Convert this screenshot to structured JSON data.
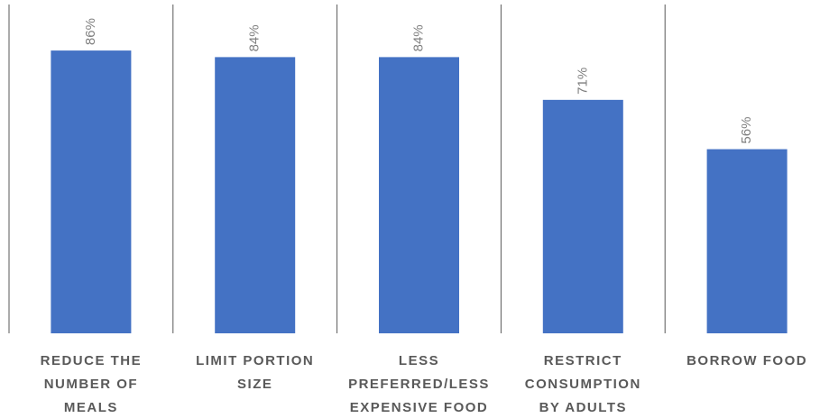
{
  "chart_data": {
    "type": "bar",
    "categories": [
      "REDUCE THE\nNUMBER OF\nMEALS",
      "LIMIT PORTION\nSIZE",
      "LESS\nPREFERRED/LESS\nEXPENSIVE FOOD",
      "RESTRICT\nCONSUMPTION\nBY ADULTS",
      "BORROW FOOD"
    ],
    "values": [
      86,
      84,
      84,
      71,
      56
    ],
    "value_labels": [
      "86%",
      "84%",
      "84%",
      "71%",
      "56%"
    ],
    "color": "#4472c4",
    "ylim": [
      0,
      100
    ]
  }
}
